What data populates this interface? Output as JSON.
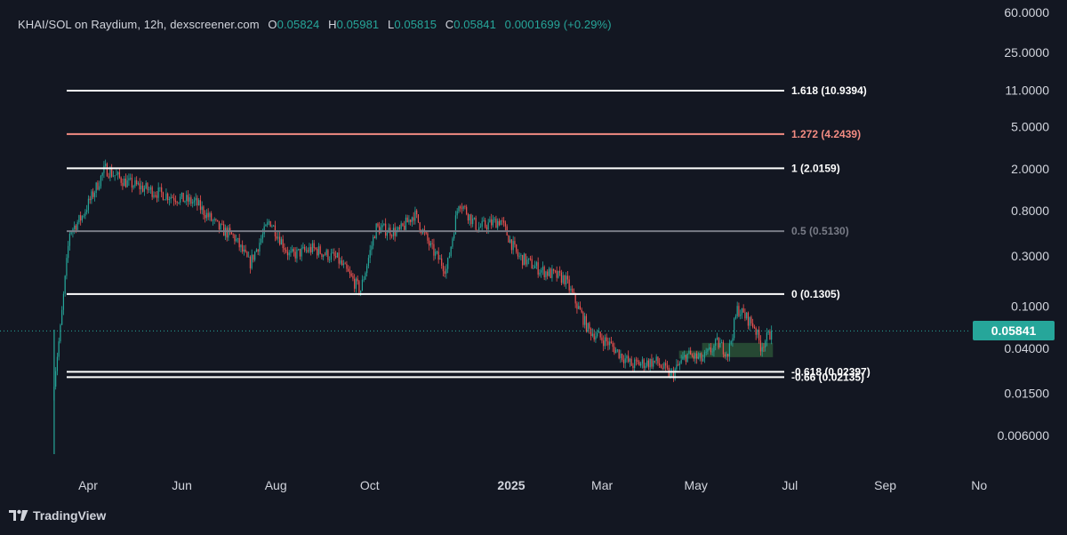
{
  "header": {
    "symbol": "KHAI/SOL on Raydium, 12h, dexscreener.com",
    "o_label": "O",
    "o_value": "0.05824",
    "h_label": "H",
    "h_value": "0.05981",
    "l_label": "L",
    "l_value": "0.05815",
    "c_label": "C",
    "c_value": "0.05841",
    "change": "0.0001699 (+0.29%)"
  },
  "current_price": "0.05841",
  "branding": {
    "name": "TradingView",
    "icon": "tradingview-logo-icon"
  },
  "colors": {
    "background": "#131722",
    "up": "#26a69a",
    "down": "#ef5350",
    "fib_white": "#ffffff",
    "fib_red": "#f28b82",
    "fib_grey": "#787b86"
  },
  "chart_data": {
    "type": "candlestick",
    "scale": "log",
    "y_ticks": [
      "60.0000",
      "25.0000",
      "11.0000",
      "5.0000",
      "2.0000",
      "0.8000",
      "0.3000",
      "0.1000",
      "0.04000",
      "0.01500",
      "0.006000"
    ],
    "x_ticks": [
      "Apr",
      "Jun",
      "Aug",
      "Oct",
      "2025",
      "Mar",
      "May",
      "Jul",
      "Sep",
      "No"
    ],
    "fib_levels": [
      {
        "label": "1.618 (10.9394)",
        "value": 10.9394,
        "color": "#ffffff"
      },
      {
        "label": "1.272 (4.2439)",
        "value": 4.2439,
        "color": "#f28b82"
      },
      {
        "label": "1 (2.0159)",
        "value": 2.0159,
        "color": "#ffffff"
      },
      {
        "label": "0.5 (0.5130)",
        "value": 0.513,
        "color": "#787b86"
      },
      {
        "label": "0 (0.1305)",
        "value": 0.1305,
        "color": "#ffffff"
      },
      {
        "label": "-0.618 (0.02397)",
        "value": 0.02397,
        "color": "#ffffff"
      },
      {
        "label": "-0.66 (0.02135)",
        "value": 0.02135,
        "color": "#ffffff"
      }
    ],
    "demand_zones": [
      {
        "from": "2025-04-20",
        "to": "2025-05-05",
        "low": 0.032,
        "high": 0.038
      },
      {
        "from": "2025-05-05",
        "to": "2025-06-20",
        "low": 0.033,
        "high": 0.045
      }
    ],
    "price_path": [
      {
        "date": "2024-03-10",
        "price": 0.02
      },
      {
        "date": "2024-03-14",
        "price": 0.06
      },
      {
        "date": "2024-03-20",
        "price": 0.5
      },
      {
        "date": "2024-03-28",
        "price": 0.7
      },
      {
        "date": "2024-04-06",
        "price": 1.3
      },
      {
        "date": "2024-04-12",
        "price": 2.0
      },
      {
        "date": "2024-04-25",
        "price": 1.5
      },
      {
        "date": "2024-05-15",
        "price": 1.2
      },
      {
        "date": "2024-06-10",
        "price": 0.95
      },
      {
        "date": "2024-06-25",
        "price": 0.55
      },
      {
        "date": "2024-07-05",
        "price": 0.45
      },
      {
        "date": "2024-07-15",
        "price": 0.25
      },
      {
        "date": "2024-07-28",
        "price": 0.65
      },
      {
        "date": "2024-08-10",
        "price": 0.3
      },
      {
        "date": "2024-08-25",
        "price": 0.35
      },
      {
        "date": "2024-09-10",
        "price": 0.28
      },
      {
        "date": "2024-09-25",
        "price": 0.14
      },
      {
        "date": "2024-10-05",
        "price": 0.55
      },
      {
        "date": "2024-10-20",
        "price": 0.5
      },
      {
        "date": "2024-10-30",
        "price": 0.75
      },
      {
        "date": "2024-11-10",
        "price": 0.35
      },
      {
        "date": "2024-11-20",
        "price": 0.22
      },
      {
        "date": "2024-11-28",
        "price": 1.0
      },
      {
        "date": "2024-12-10",
        "price": 0.55
      },
      {
        "date": "2024-12-25",
        "price": 0.65
      },
      {
        "date": "2025-01-05",
        "price": 0.3
      },
      {
        "date": "2025-01-20",
        "price": 0.22
      },
      {
        "date": "2025-02-05",
        "price": 0.18
      },
      {
        "date": "2025-02-20",
        "price": 0.06
      },
      {
        "date": "2025-03-05",
        "price": 0.045
      },
      {
        "date": "2025-03-20",
        "price": 0.028
      },
      {
        "date": "2025-04-05",
        "price": 0.03
      },
      {
        "date": "2025-04-15",
        "price": 0.022
      },
      {
        "date": "2025-04-25",
        "price": 0.035
      },
      {
        "date": "2025-05-05",
        "price": 0.031
      },
      {
        "date": "2025-05-15",
        "price": 0.045
      },
      {
        "date": "2025-05-22",
        "price": 0.036
      },
      {
        "date": "2025-05-28",
        "price": 0.095
      },
      {
        "date": "2025-06-08",
        "price": 0.065
      },
      {
        "date": "2025-06-12",
        "price": 0.042
      },
      {
        "date": "2025-06-20",
        "price": 0.05841
      }
    ],
    "last_price": 0.05841,
    "grid": false,
    "title": "",
    "xlabel": "",
    "ylabel": ""
  }
}
